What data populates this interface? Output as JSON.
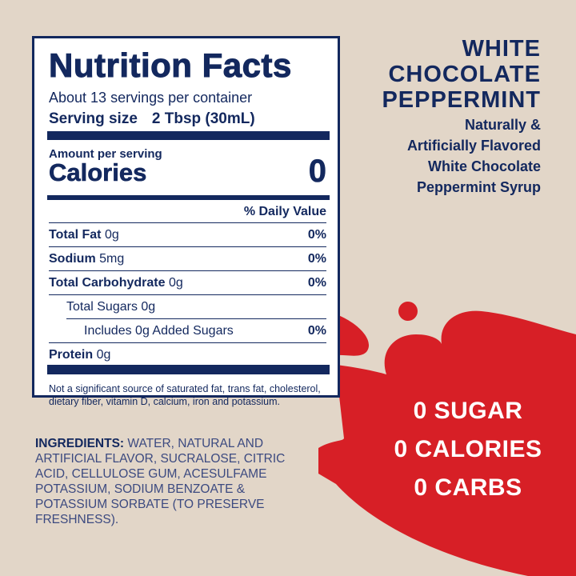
{
  "colors": {
    "background": "#e2d6c8",
    "navy": "#13285e",
    "red": "#d71f26"
  },
  "nutrition": {
    "title": "Nutrition Facts",
    "servings": "About 13 servings per container",
    "serving_size_label": "Serving size",
    "serving_size_value": "2 Tbsp (30mL)",
    "amount_per_serving": "Amount per serving",
    "calories_label": "Calories",
    "calories_value": "0",
    "daily_value_header": "% Daily Value",
    "rows": [
      {
        "name": "Total Fat",
        "amount": "0g",
        "dv": "0%"
      },
      {
        "name": "Sodium",
        "amount": "5mg",
        "dv": "0%"
      },
      {
        "name": "Total Carbohydrate",
        "amount": "0g",
        "dv": "0%"
      },
      {
        "name": "Total Sugars 0g",
        "amount": "",
        "dv": ""
      },
      {
        "name": "Includes 0g Added Sugars",
        "amount": "",
        "dv": "0%"
      },
      {
        "name": "Protein",
        "amount": "0g",
        "dv": ""
      }
    ],
    "footnote": "Not a significant source of saturated fat, trans fat, cholesterol, dietary fiber, vitamin D, calcium, iron and potassium."
  },
  "ingredients": {
    "label": "INGREDIENTS:",
    "text": "WATER, NATURAL AND ARTIFICIAL FLAVOR, SUCRALOSE, CITRIC ACID, CELLULOSE GUM, ACESULFAME POTASSIUM, SODIUM BENZOATE & POTASSIUM SORBATE (TO PRESERVE FRESHNESS)."
  },
  "product": {
    "name_lines": [
      "WHITE",
      "CHOCOLATE",
      "PEPPERMINT"
    ],
    "desc_lines": [
      "Naturally &",
      "Artificially Flavored",
      "White Chocolate",
      "Peppermint Syrup"
    ]
  },
  "claims": [
    "0 SUGAR",
    "0 CALORIES",
    "0 CARBS"
  ]
}
